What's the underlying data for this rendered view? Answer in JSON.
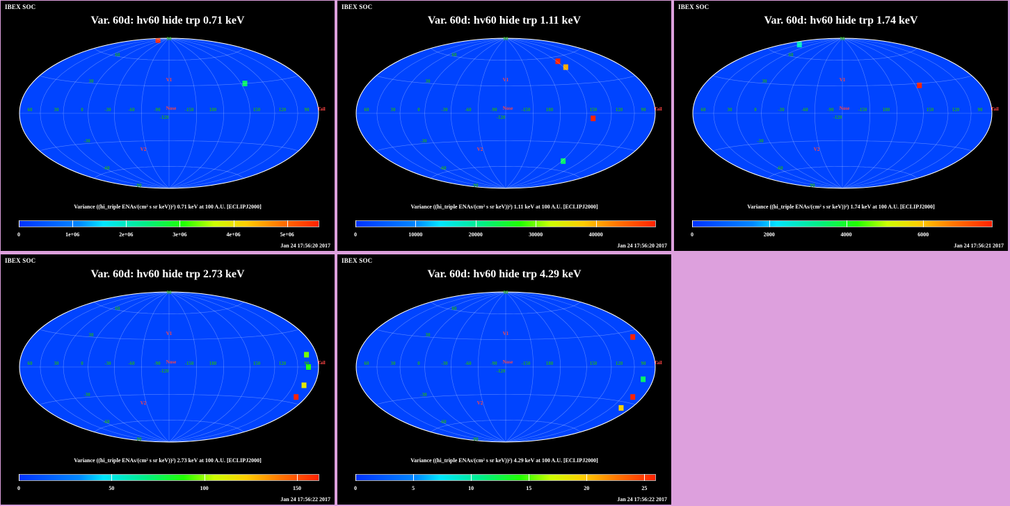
{
  "brand": "IBEX SOC",
  "colors": {
    "background": "#000000",
    "frame": "#dda0dd",
    "map_base": "#0044ff",
    "label_green": "#22aa22",
    "label_red": "#ff4444"
  },
  "common_labels": {
    "lon": [
      "60",
      "30",
      "0",
      "-30",
      "-60",
      "-90",
      "-120",
      "-150",
      "180",
      "150",
      "120",
      "90"
    ],
    "lat": [
      "60",
      "30",
      "-30",
      "-60",
      "90",
      "-90"
    ],
    "nose": "Nose",
    "tail": "Tail",
    "v1": "V1",
    "v2": "V2"
  },
  "panels": [
    {
      "title": "Var. 60d: hv60 hide trp 0.71 keV",
      "caption": "Variance ((hi_triple ENAs/(cm² s sr keV))²) 0.71 keV at 100 A.U. [ECLIPJ2000]",
      "timestamp": "Jan 24 17:56:20 2017",
      "chart_data": {
        "type": "heatmap",
        "title": "Var. 60d: hv60 hide trp 0.71 keV",
        "colorbar": {
          "min": 0,
          "max": 5600000.0,
          "ticks": [
            "0",
            "1e+06",
            "2e+06",
            "3e+06",
            "4e+06",
            "5e+06"
          ],
          "tick_values": [
            0,
            1000000,
            2000000,
            3000000,
            4000000,
            5000000
          ]
        },
        "hotspots": [
          {
            "lon": -95,
            "lat": 30,
            "level": 0.45
          },
          {
            "lon": 120,
            "lat": 85,
            "level": 1.0
          }
        ]
      }
    },
    {
      "title": "Var. 60d: hv60 hide trp 1.11 keV",
      "caption": "Variance ((hi_triple ENAs/(cm² s sr keV))²) 1.11 keV at 100 A.U. [ECLIPJ2000]",
      "timestamp": "Jan 24 17:56:20 2017",
      "chart_data": {
        "type": "heatmap",
        "title": "Var. 60d: hv60 hide trp 1.11 keV",
        "colorbar": {
          "min": 0,
          "max": 50000,
          "ticks": [
            "0",
            "10000",
            "20000",
            "30000",
            "40000"
          ],
          "tick_values": [
            0,
            10000,
            20000,
            30000,
            40000
          ]
        },
        "hotspots": [
          {
            "lon": -92,
            "lat": 55,
            "level": 1.0
          },
          {
            "lon": -93,
            "lat": 48,
            "level": 0.8
          },
          {
            "lon": -98,
            "lat": -5,
            "level": 1.0
          },
          {
            "lon": -92,
            "lat": -50,
            "level": 0.45
          }
        ]
      }
    },
    {
      "title": "Var. 60d: hv60 hide trp 1.74 keV",
      "caption": "Variance ((hi_triple ENAs/(cm² s sr keV))²) 1.74 keV at 100 A.U. [ECLIPJ2000]",
      "timestamp": "Jan 24 17:56:21 2017",
      "chart_data": {
        "type": "heatmap",
        "title": "Var. 60d: hv60 hide trp 1.74 keV",
        "colorbar": {
          "min": 0,
          "max": 7800,
          "ticks": [
            "0",
            "2000",
            "4000",
            "6000"
          ],
          "tick_values": [
            0,
            2000,
            4000,
            6000
          ]
        },
        "hotspots": [
          {
            "lon": -95,
            "lat": 28,
            "level": 1.0
          },
          {
            "lon": 150,
            "lat": 72,
            "level": 0.35
          }
        ]
      }
    },
    {
      "title": "Var. 60d: hv60 hide trp 2.73 keV",
      "caption": "Variance ((hi_triple ENAs/(cm² s sr keV))²) 2.73 keV at 100 A.U. [ECLIPJ2000]",
      "timestamp": "Jan 24 17:56:22 2017",
      "chart_data": {
        "type": "heatmap",
        "title": "Var. 60d: hv60 hide trp 2.73 keV",
        "colorbar": {
          "min": 0,
          "max": 162,
          "ticks": [
            "0",
            "50",
            "100",
            "150"
          ],
          "tick_values": [
            0,
            50,
            100,
            150
          ]
        },
        "hotspots": [
          {
            "lon": -165,
            "lat": -25,
            "level": 1.0
          },
          {
            "lon": -165,
            "lat": -15,
            "level": 0.7
          },
          {
            "lon": -165,
            "lat": 0,
            "level": 0.55
          },
          {
            "lon": -165,
            "lat": 10,
            "level": 0.6
          }
        ]
      }
    },
    {
      "title": "Var. 60d: hv60 hide trp 4.29 keV",
      "caption": "Variance ((hi_triple ENAs/(cm² s sr keV))²) 4.29 keV at 100 A.U. [ECLIPJ2000]",
      "timestamp": "Jan 24 17:56:22 2017",
      "chart_data": {
        "type": "heatmap",
        "title": "Var. 60d: hv60 hide trp 4.29 keV",
        "colorbar": {
          "min": 0,
          "max": 26,
          "ticks": [
            "0",
            "5",
            "10",
            "15",
            "20",
            "25"
          ],
          "tick_values": [
            0,
            5,
            10,
            15,
            20,
            25
          ]
        },
        "hotspots": [
          {
            "lon": -165,
            "lat": 25,
            "level": 1.0
          },
          {
            "lon": -165,
            "lat": -25,
            "level": 1.0
          },
          {
            "lon": -165,
            "lat": -35,
            "level": 0.75
          },
          {
            "lon": -165,
            "lat": -10,
            "level": 0.45
          }
        ]
      }
    }
  ]
}
